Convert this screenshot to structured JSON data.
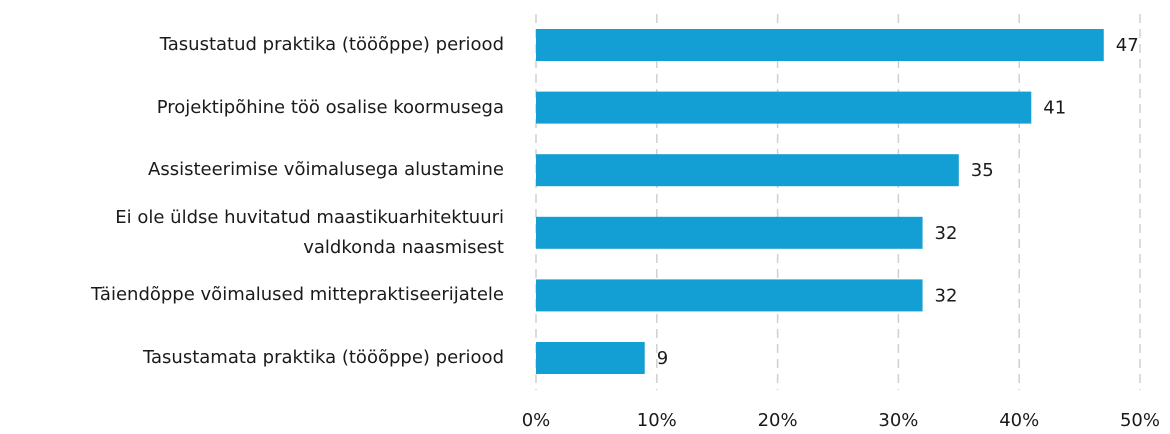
{
  "chart_data": {
    "type": "bar",
    "orientation": "horizontal",
    "categories": [
      "Tasustatud praktika (tööõppe) periood",
      "Projektipõhine töö osalise koormusega",
      "Assisteerimise võimalusega alustamine",
      "Ei ole üldse huvitatud maastikuarhitektuuri\nvaldkonda naasmisest",
      "Täiendõppe võimalused mittepraktiseerijatele",
      "Tasustamata praktika (tööõppe) periood"
    ],
    "values": [
      47,
      41,
      35,
      32,
      32,
      9
    ],
    "color": "#149fd4",
    "xlim": [
      0,
      50
    ],
    "xticks": [
      {
        "value": 0,
        "label": "0%"
      },
      {
        "value": 10,
        "label": "10%"
      },
      {
        "value": 20,
        "label": "20%"
      },
      {
        "value": 30,
        "label": "30%"
      },
      {
        "value": 40,
        "label": "40%"
      },
      {
        "value": 50,
        "label": "50%"
      }
    ],
    "grid": true
  }
}
